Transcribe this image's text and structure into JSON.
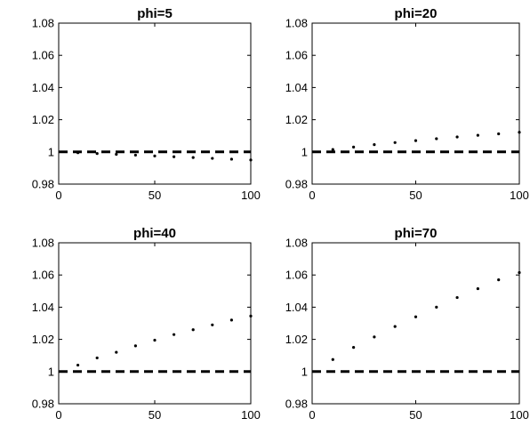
{
  "chart_data": [
    {
      "type": "scatter",
      "title": "phi=5",
      "xlim": [
        0,
        100
      ],
      "ylim": [
        0.98,
        1.08
      ],
      "xticks": [
        "0",
        "50",
        "100"
      ],
      "yticks": [
        "0.98",
        "1",
        "1.02",
        "1.04",
        "1.06",
        "1.08"
      ],
      "grid": false,
      "reference_line": {
        "y": 1,
        "style": "dashed"
      },
      "x": [
        10,
        20,
        30,
        40,
        50,
        60,
        70,
        80,
        90,
        100
      ],
      "y": [
        0.9995,
        0.999,
        0.9985,
        0.998,
        0.9975,
        0.997,
        0.9965,
        0.996,
        0.9955,
        0.995
      ]
    },
    {
      "type": "scatter",
      "title": "phi=20",
      "xlim": [
        0,
        100
      ],
      "ylim": [
        0.98,
        1.08
      ],
      "xticks": [
        "0",
        "50",
        "100"
      ],
      "yticks": [
        "0.98",
        "1",
        "1.02",
        "1.04",
        "1.06",
        "1.08"
      ],
      "grid": false,
      "reference_line": {
        "y": 1,
        "style": "dashed"
      },
      "x": [
        10,
        20,
        30,
        40,
        50,
        60,
        70,
        80,
        90,
        100
      ],
      "y": [
        1.0015,
        1.003,
        1.0045,
        1.0058,
        1.007,
        1.0082,
        1.0093,
        1.0103,
        1.0112,
        1.0122
      ]
    },
    {
      "type": "scatter",
      "title": "phi=40",
      "xlim": [
        0,
        100
      ],
      "ylim": [
        0.98,
        1.08
      ],
      "xticks": [
        "0",
        "50",
        "100"
      ],
      "yticks": [
        "0.98",
        "1",
        "1.02",
        "1.04",
        "1.06",
        "1.08"
      ],
      "grid": false,
      "reference_line": {
        "y": 1,
        "style": "dashed"
      },
      "x": [
        10,
        20,
        30,
        40,
        50,
        60,
        70,
        80,
        90,
        100
      ],
      "y": [
        1.004,
        1.0085,
        1.012,
        1.016,
        1.0195,
        1.023,
        1.026,
        1.029,
        1.032,
        1.0345
      ]
    },
    {
      "type": "scatter",
      "title": "phi=70",
      "xlim": [
        0,
        100
      ],
      "ylim": [
        0.98,
        1.08
      ],
      "xticks": [
        "0",
        "50",
        "100"
      ],
      "yticks": [
        "0.98",
        "1",
        "1.02",
        "1.04",
        "1.06",
        "1.08"
      ],
      "grid": false,
      "reference_line": {
        "y": 1,
        "style": "dashed"
      },
      "x": [
        10,
        20,
        30,
        40,
        50,
        60,
        70,
        80,
        90,
        100
      ],
      "y": [
        1.0075,
        1.015,
        1.0215,
        1.028,
        1.034,
        1.04,
        1.046,
        1.0515,
        1.057,
        1.0615
      ]
    }
  ],
  "colors": {
    "axis": "#000000",
    "marker": "#000000",
    "reference_line": "#000000",
    "background": "#ffffff"
  }
}
